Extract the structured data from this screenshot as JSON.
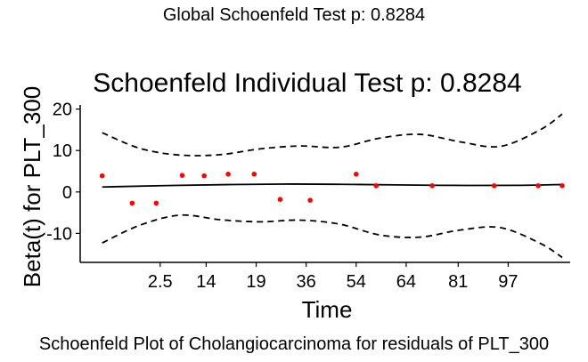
{
  "figure": {
    "suptitle": "Global Schoenfeld Test p: 0.8284",
    "caption": "Schoenfeld Plot of Cholangiocarcinoma for residuals of PLT_300"
  },
  "chart_data": {
    "type": "line",
    "title": "Schoenfeld Individual Test p: 0.8284",
    "xlabel": "Time",
    "ylabel": "Beta(t) for PLT_300",
    "x_tick_labels": [
      "2.5",
      "14",
      "19",
      "36",
      "54",
      "64",
      "81",
      "97"
    ],
    "x_tick_positions": [
      2.0,
      3.15,
      4.4,
      5.65,
      6.9,
      8.15,
      9.45,
      10.7
    ],
    "xlim": [
      0,
      12.25
    ],
    "y_ticks": [
      -10,
      0,
      10,
      20
    ],
    "ylim": [
      -17,
      21
    ],
    "colors": {
      "points": "#ff0000",
      "lines": "#000000"
    },
    "points": {
      "name": "residuals",
      "x": [
        0.55,
        1.3,
        1.9,
        2.55,
        3.1,
        3.7,
        4.35,
        5.0,
        5.75,
        6.9,
        7.4,
        8.8,
        10.35,
        11.45,
        12.05
      ],
      "y": [
        3.9,
        -2.7,
        -2.7,
        4.0,
        3.9,
        4.3,
        4.3,
        -1.8,
        -2.0,
        4.3,
        1.5,
        1.5,
        1.5,
        1.5,
        1.5
      ]
    },
    "series": [
      {
        "name": "fit",
        "style": "solid",
        "x": [
          0.55,
          2.5,
          5.0,
          7.0,
          9.0,
          11.0,
          12.05
        ],
        "y": [
          1.2,
          1.6,
          1.9,
          1.8,
          1.6,
          1.6,
          1.8
        ]
      },
      {
        "name": "upper-ci",
        "style": "dashed",
        "x": [
          0.55,
          1.5,
          2.5,
          3.5,
          4.5,
          5.5,
          6.5,
          7.5,
          8.5,
          9.5,
          10.5,
          11.5,
          12.05
        ],
        "y": [
          14.3,
          10.5,
          8.9,
          9.0,
          10.4,
          11.1,
          10.8,
          13.0,
          13.9,
          12.1,
          11.0,
          15.0,
          18.8
        ]
      },
      {
        "name": "lower-ci",
        "style": "dashed",
        "x": [
          0.55,
          1.5,
          2.5,
          3.5,
          4.5,
          5.5,
          6.5,
          7.5,
          8.5,
          9.5,
          10.5,
          11.5,
          12.05
        ],
        "y": [
          -12.3,
          -8.0,
          -5.6,
          -6.7,
          -7.2,
          -6.8,
          -7.8,
          -10.4,
          -10.9,
          -9.2,
          -8.6,
          -12.4,
          -15.8
        ]
      }
    ]
  }
}
